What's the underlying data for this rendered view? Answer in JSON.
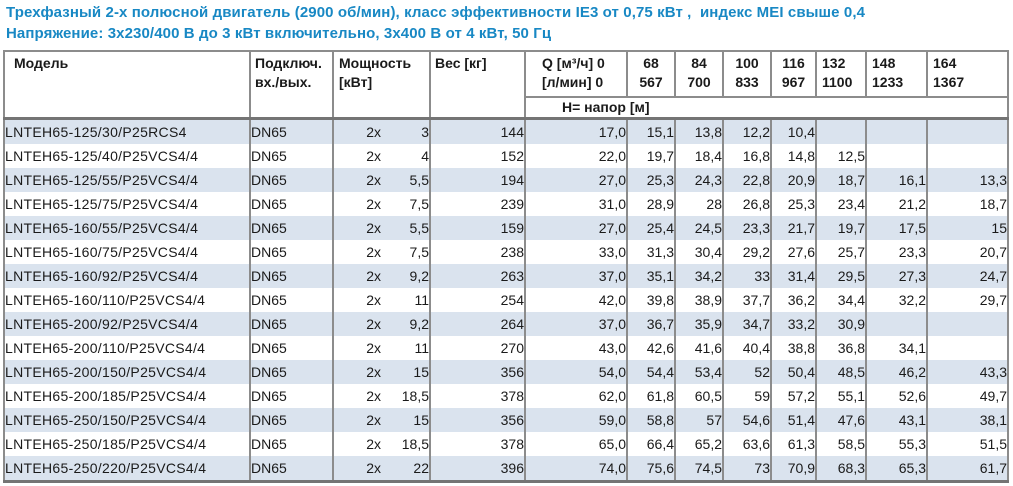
{
  "header": {
    "line1": "Трехфазный 2-х полюсной двигатель (2900 об/мин), класс эффективности IE3 от 0,75 кВт ,  индекс MEI свыше 0,4",
    "line2": "Напряжение: 3x230/400 В до 3 кВт включительно, 3x400 В от 4 кВт, 50 Гц"
  },
  "colors": {
    "title_text": "#1888c4",
    "row_stripe": "#dae3ee",
    "grid_line": "#8c8c8c",
    "heavy_line": "#747474"
  },
  "table": {
    "headers": {
      "model": "Модель",
      "connection_line1": "Подключ.",
      "connection_line2": "вх./вых.",
      "power_line1": "Мощность",
      "power_line2": "[кВт]",
      "weight": "Вес [кг]",
      "q_line1": "Q [м³/ч] 0",
      "q_line2": "[л/мин] 0",
      "head_label": "H= напор [м]",
      "flow_columns": [
        {
          "m3h": "68",
          "lmin": "567"
        },
        {
          "m3h": "84",
          "lmin": "700"
        },
        {
          "m3h": "100",
          "lmin": "833"
        },
        {
          "m3h": "116",
          "lmin": "967"
        },
        {
          "m3h": "132",
          "lmin": "1100"
        },
        {
          "m3h": "148",
          "lmin": "1233"
        },
        {
          "m3h": "164",
          "lmin": "1367"
        }
      ]
    },
    "rows": [
      {
        "model": "LNTEH65-125/30/P25RCS4",
        "connection": "DN65",
        "power_prefix": "2x",
        "power_kw": "3",
        "weight": "144",
        "heads": [
          "17,0",
          "15,1",
          "13,8",
          "12,2",
          "10,4",
          "",
          "",
          ""
        ]
      },
      {
        "model": "LNTEH65-125/40/P25VCS4/4",
        "connection": "DN65",
        "power_prefix": "2x",
        "power_kw": "4",
        "weight": "152",
        "heads": [
          "22,0",
          "19,7",
          "18,4",
          "16,8",
          "14,8",
          "12,5",
          "",
          ""
        ]
      },
      {
        "model": "LNTEH65-125/55/P25VCS4/4",
        "connection": "DN65",
        "power_prefix": "2x",
        "power_kw": "5,5",
        "weight": "194",
        "heads": [
          "27,0",
          "25,3",
          "24,3",
          "22,8",
          "20,9",
          "18,7",
          "16,1",
          "13,3"
        ]
      },
      {
        "model": "LNTEH65-125/75/P25VCS4/4",
        "connection": "DN65",
        "power_prefix": "2x",
        "power_kw": "7,5",
        "weight": "239",
        "heads": [
          "31,0",
          "28,9",
          "28",
          "26,8",
          "25,3",
          "23,4",
          "21,2",
          "18,7"
        ]
      },
      {
        "model": "LNTEH65-160/55/P25VCS4/4",
        "connection": "DN65",
        "power_prefix": "2x",
        "power_kw": "5,5",
        "weight": "159",
        "heads": [
          "27,0",
          "25,4",
          "24,5",
          "23,3",
          "21,7",
          "19,7",
          "17,5",
          "15"
        ]
      },
      {
        "model": "LNTEH65-160/75/P25VCS4/4",
        "connection": "DN65",
        "power_prefix": "2x",
        "power_kw": "7,5",
        "weight": "238",
        "heads": [
          "33,0",
          "31,3",
          "30,4",
          "29,2",
          "27,6",
          "25,7",
          "23,3",
          "20,7"
        ]
      },
      {
        "model": "LNTEH65-160/92/P25VCS4/4",
        "connection": "DN65",
        "power_prefix": "2x",
        "power_kw": "9,2",
        "weight": "263",
        "heads": [
          "37,0",
          "35,1",
          "34,2",
          "33",
          "31,4",
          "29,5",
          "27,3",
          "24,7"
        ]
      },
      {
        "model": "LNTEH65-160/110/P25VCS4/4",
        "connection": "DN65",
        "power_prefix": "2x",
        "power_kw": "11",
        "weight": "254",
        "heads": [
          "42,0",
          "39,8",
          "38,9",
          "37,7",
          "36,2",
          "34,4",
          "32,2",
          "29,7"
        ]
      },
      {
        "model": "LNTEH65-200/92/P25VCS4/4",
        "connection": "DN65",
        "power_prefix": "2x",
        "power_kw": "9,2",
        "weight": "264",
        "heads": [
          "37,0",
          "36,7",
          "35,9",
          "34,7",
          "33,2",
          "30,9",
          "",
          ""
        ]
      },
      {
        "model": "LNTEH65-200/110/P25VCS4/4",
        "connection": "DN65",
        "power_prefix": "2x",
        "power_kw": "11",
        "weight": "270",
        "heads": [
          "43,0",
          "42,6",
          "41,6",
          "40,4",
          "38,8",
          "36,8",
          "34,1",
          ""
        ]
      },
      {
        "model": "LNTEH65-200/150/P25VCS4/4",
        "connection": "DN65",
        "power_prefix": "2x",
        "power_kw": "15",
        "weight": "356",
        "heads": [
          "54,0",
          "54,4",
          "53,4",
          "52",
          "50,4",
          "48,5",
          "46,2",
          "43,3"
        ]
      },
      {
        "model": "LNTEH65-200/185/P25VCS4/4",
        "connection": "DN65",
        "power_prefix": "2x",
        "power_kw": "18,5",
        "weight": "378",
        "heads": [
          "62,0",
          "61,8",
          "60,5",
          "59",
          "57,2",
          "55,1",
          "52,6",
          "49,7"
        ]
      },
      {
        "model": "LNTEH65-250/150/P25VCS4/4",
        "connection": "DN65",
        "power_prefix": "2x",
        "power_kw": "15",
        "weight": "356",
        "heads": [
          "59,0",
          "58,8",
          "57",
          "54,6",
          "51,4",
          "47,6",
          "43,1",
          "38,1"
        ]
      },
      {
        "model": "LNTEH65-250/185/P25VCS4/4",
        "connection": "DN65",
        "power_prefix": "2x",
        "power_kw": "18,5",
        "weight": "378",
        "heads": [
          "65,0",
          "66,4",
          "65,2",
          "63,6",
          "61,3",
          "58,5",
          "55,3",
          "51,5"
        ]
      },
      {
        "model": "LNTEH65-250/220/P25VCS4/4",
        "connection": "DN65",
        "power_prefix": "2x",
        "power_kw": "22",
        "weight": "396",
        "heads": [
          "74,0",
          "75,6",
          "74,5",
          "73",
          "70,9",
          "68,3",
          "65,3",
          "61,7"
        ]
      }
    ]
  }
}
